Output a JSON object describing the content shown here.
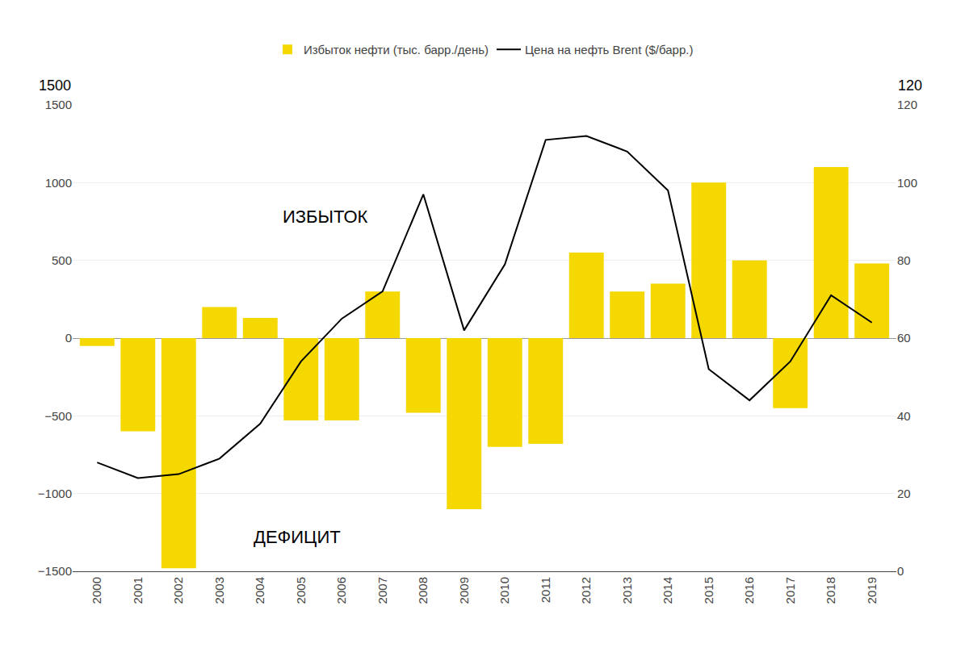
{
  "chart_data": {
    "type": "bar",
    "x": [
      2000,
      2001,
      2002,
      2003,
      2004,
      2005,
      2006,
      2007,
      2008,
      2009,
      2010,
      2011,
      2012,
      2013,
      2014,
      2015,
      2016,
      2017,
      2018,
      2019
    ],
    "series": [
      {
        "name": "Избыток нефти (тыс. барр./день)",
        "type": "bar",
        "color": "#F5D800",
        "values": [
          -50,
          -600,
          -1480,
          200,
          130,
          -530,
          -530,
          300,
          -480,
          -1100,
          -700,
          -680,
          550,
          300,
          350,
          1000,
          500,
          -450,
          1100,
          480
        ]
      },
      {
        "name": "Цена на нефть Brent ($/барр.)",
        "type": "line",
        "color": "#000000",
        "axis": "y2",
        "values": [
          28,
          24,
          25,
          29,
          38,
          54,
          65,
          72,
          97,
          62,
          79,
          111,
          112,
          108,
          98,
          52,
          44,
          54,
          71,
          64
        ]
      }
    ],
    "xlim": [
      1999.4,
      2019.6
    ],
    "xticks": [
      2000,
      2001,
      2002,
      2003,
      2004,
      2005,
      2006,
      2007,
      2008,
      2009,
      2010,
      2011,
      2012,
      2013,
      2014,
      2015,
      2016,
      2017,
      2018,
      2019
    ],
    "ylim": [
      -1500,
      1500
    ],
    "yticks": [
      {
        "value": -1500,
        "label": "−1500"
      },
      {
        "value": -1000,
        "label": "−1000"
      },
      {
        "value": -500,
        "label": "−500"
      },
      0,
      500,
      1000,
      1500
    ],
    "y2lim": [
      0,
      120
    ],
    "y2ticks": [
      0,
      20,
      40,
      60,
      80,
      100,
      120
    ],
    "ylabel": "1500",
    "y2label": "120",
    "annotations": [
      {
        "text": "ИЗБЫТОК",
        "x": 2004.5,
        "y": 780
      },
      {
        "text": "ДЕФИЦИТ",
        "x": 2003.8,
        "y": -1280
      }
    ],
    "grid": true,
    "legend": "top"
  }
}
